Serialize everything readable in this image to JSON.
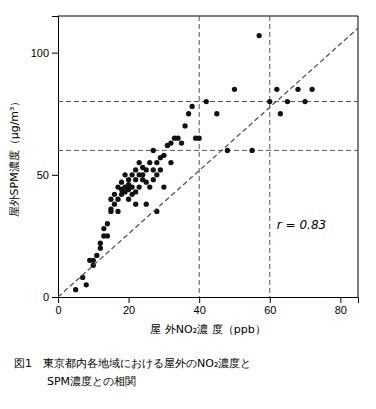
{
  "chart_data": {
    "type": "scatter",
    "xlabel": "屋 外NO₂濃 度（ppb）",
    "ylabel": "屋外SPM濃度（μg/m³）",
    "caption": [
      "図1　東京都内各地域における屋外のNO₂濃度と",
      "　　　SPM濃度との相関"
    ],
    "series": [
      {
        "type": "scatter",
        "marker": "circle",
        "color": "#111111",
        "x": [
          5,
          7,
          8,
          9,
          10,
          10,
          11,
          12,
          12,
          13,
          13,
          14,
          14,
          15,
          15,
          15,
          16,
          16,
          17,
          17,
          17,
          18,
          18,
          18,
          19,
          19,
          19,
          20,
          20,
          20,
          20,
          21,
          21,
          21,
          22,
          22,
          22,
          22,
          23,
          23,
          23,
          24,
          24,
          24,
          25,
          25,
          25,
          26,
          26,
          27,
          27,
          27,
          28,
          28,
          28,
          29,
          29,
          30,
          30,
          31,
          32,
          32,
          33,
          34,
          35,
          36,
          37,
          38,
          39,
          40,
          42,
          45,
          48,
          50,
          55,
          57,
          60,
          62,
          63,
          65,
          68,
          70,
          72
        ],
        "values": [
          3,
          8,
          5,
          15,
          13,
          15,
          17,
          20,
          22,
          25,
          28,
          30,
          25,
          35,
          40,
          36,
          38,
          42,
          40,
          45,
          35,
          42,
          44,
          47,
          45,
          43,
          50,
          44,
          46,
          48,
          40,
          45,
          42,
          50,
          48,
          52,
          38,
          43,
          50,
          55,
          45,
          50,
          53,
          48,
          47,
          52,
          38,
          55,
          45,
          52,
          48,
          60,
          50,
          55,
          35,
          57,
          52,
          58,
          45,
          62,
          63,
          55,
          65,
          65,
          63,
          70,
          75,
          78,
          65,
          65,
          80,
          75,
          60,
          85,
          60,
          107,
          80,
          85,
          75,
          80,
          85,
          80,
          85
        ]
      },
      {
        "type": "line",
        "line_style": "dashed",
        "color": "#555555",
        "x": [
          0,
          85
        ],
        "values": [
          0,
          110
        ]
      }
    ],
    "vlines": [
      {
        "value": 40,
        "color": "#555555",
        "line_style": "dashed"
      },
      {
        "value": 60,
        "color": "#555555",
        "line_style": "dashed"
      }
    ],
    "hlines": [
      {
        "value": 60,
        "color": "#555555",
        "line_style": "dashed"
      },
      {
        "value": 80,
        "color": "#555555",
        "line_style": "dashed"
      }
    ],
    "annotations": [
      {
        "text": "r = 0.83",
        "x": 62,
        "y": 28
      }
    ],
    "xlim": [
      0,
      85
    ],
    "ylim": [
      0,
      115
    ],
    "xticks": [
      0,
      20,
      40,
      60,
      80
    ],
    "yticks": [
      0,
      50,
      100
    ],
    "grid": false
  }
}
